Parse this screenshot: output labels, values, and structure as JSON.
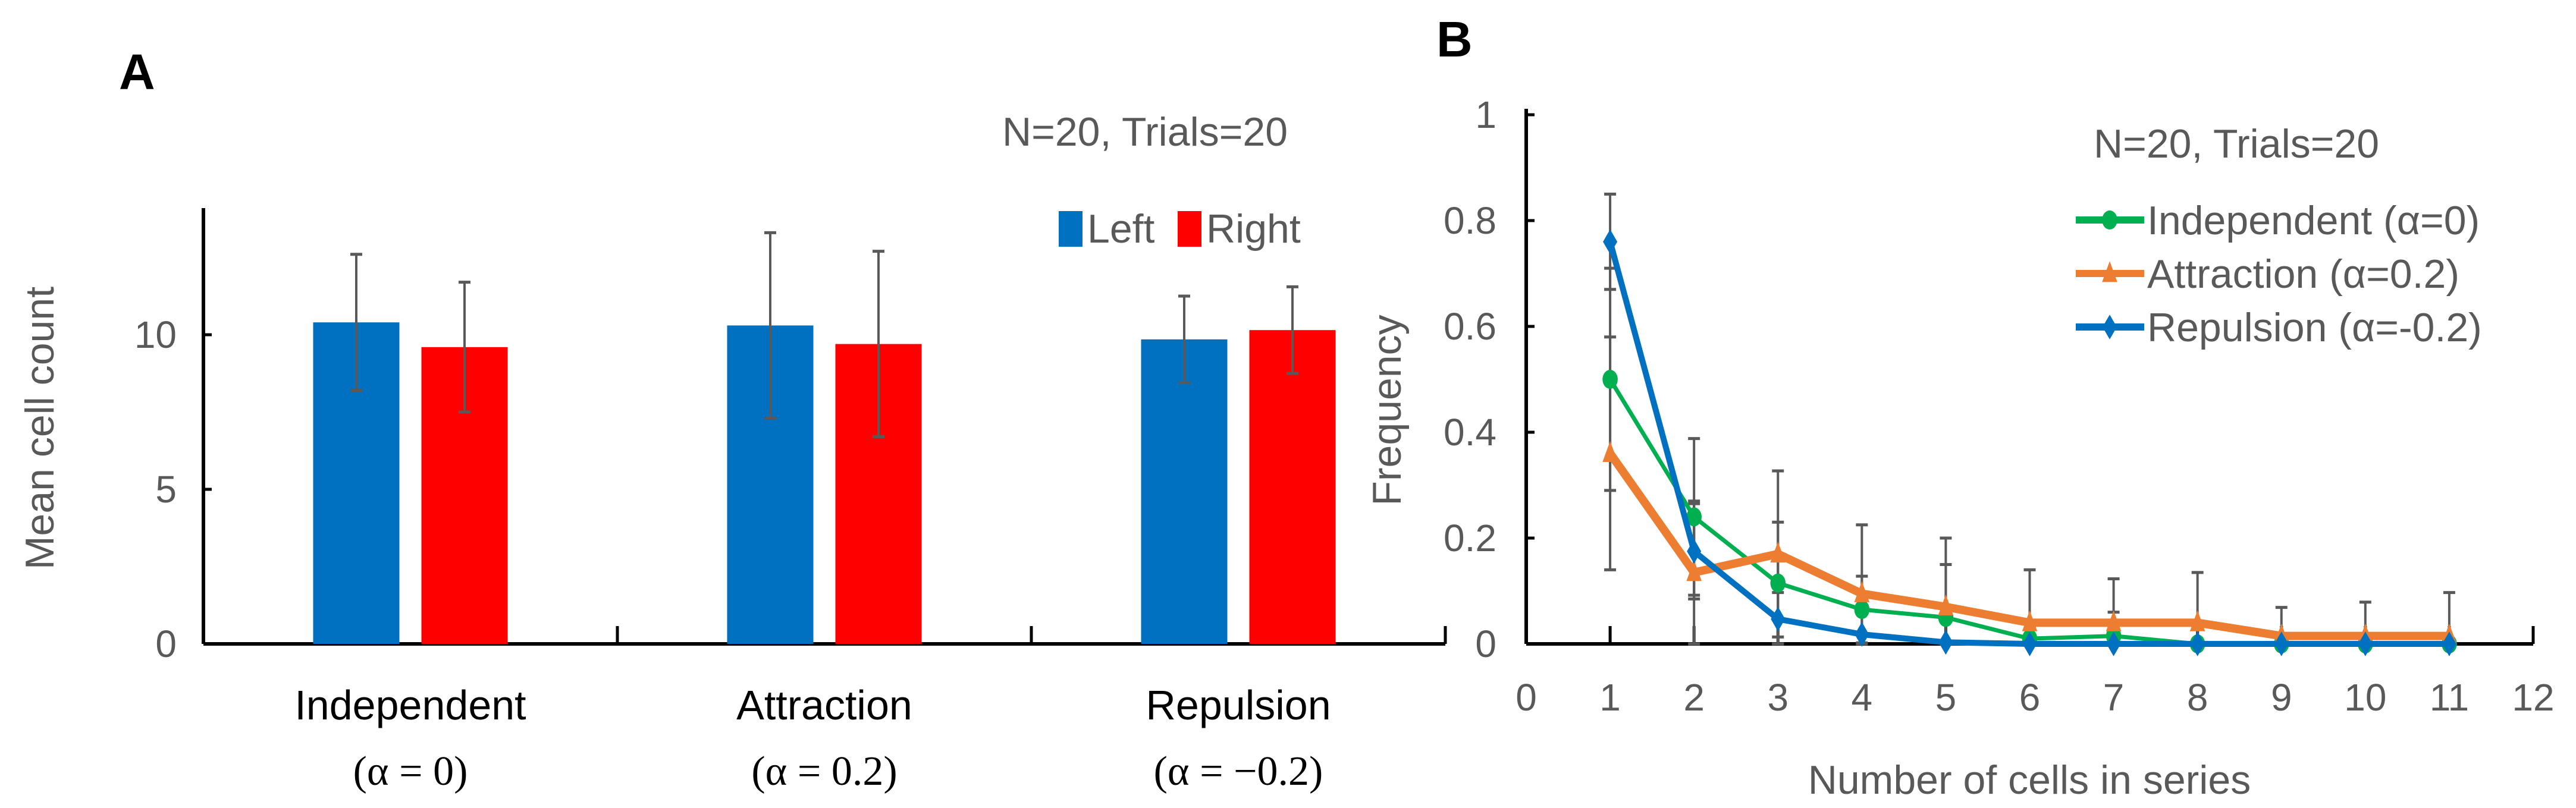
{
  "chart_data": [
    {
      "panel": "A",
      "type": "bar",
      "annotation": "N=20, Trials=20",
      "ylabel": "Mean cell count",
      "xlabel": "",
      "ylim": [
        0,
        14
      ],
      "yticks": [
        0,
        5,
        10
      ],
      "categories": [
        "Independent",
        "Attraction",
        "Repulsion"
      ],
      "category_sublabels": [
        "(α = 0)",
        "(α = 0.2)",
        "(α = −0.2)"
      ],
      "legend_position": "top-right",
      "series": [
        {
          "name": "Left",
          "color": "#0070C0",
          "values": [
            10.4,
            10.3,
            9.85
          ],
          "errors": [
            2.2,
            3.0,
            1.4
          ]
        },
        {
          "name": "Right",
          "color": "#FF0000",
          "values": [
            9.6,
            9.7,
            10.15
          ],
          "errors": [
            2.1,
            3.0,
            1.4
          ]
        }
      ]
    },
    {
      "panel": "B",
      "type": "line",
      "annotation": "N=20, Trials=20",
      "xlabel": "Number of cells in series",
      "ylabel": "Frequency",
      "xlim": [
        0,
        12
      ],
      "ylim": [
        0,
        1
      ],
      "xticks": [
        0,
        1,
        2,
        3,
        4,
        5,
        6,
        7,
        8,
        9,
        10,
        11,
        12
      ],
      "yticks": [
        0,
        0.2,
        0.4,
        0.6,
        0.8,
        1
      ],
      "yticklabels": [
        "0",
        "0.2",
        "0.4",
        "0.6",
        "0.8",
        "1"
      ],
      "legend_position": "top-right",
      "x": [
        1,
        2,
        3,
        4,
        5,
        6,
        7,
        8,
        9,
        10,
        11
      ],
      "series": [
        {
          "name": "Independent (α=0)",
          "color": "#00B050",
          "marker": "circle",
          "values": [
            0.5,
            0.24,
            0.115,
            0.065,
            0.05,
            0.01,
            0.015,
            0,
            0,
            0,
            0
          ],
          "errors": [
            0.21,
            0.148,
            0.115,
            0.063,
            0.1,
            0,
            0.045,
            0,
            0,
            0,
            0
          ]
        },
        {
          "name": "Attraction (α=0.2)",
          "color": "#ED7D31",
          "marker": "triangle",
          "values": [
            0.36,
            0.135,
            0.17,
            0.095,
            0.07,
            0.04,
            0.04,
            0.04,
            0.015,
            0.015,
            0.015
          ],
          "errors": [
            0.22,
            0.135,
            0.157,
            0.13,
            0.13,
            0.1,
            0.083,
            0.095,
            0.054,
            0.064,
            0.082
          ]
        },
        {
          "name": "Repulsion (α=-0.2)",
          "color": "#0070C0",
          "marker": "diamond",
          "values": [
            0.76,
            0.175,
            0.047,
            0.018,
            0.003,
            0,
            0,
            0,
            0,
            0,
            0
          ],
          "errors": [
            0.09,
            0.09,
            0.05,
            0,
            0,
            0,
            0,
            0,
            0,
            0,
            0
          ]
        }
      ]
    }
  ]
}
